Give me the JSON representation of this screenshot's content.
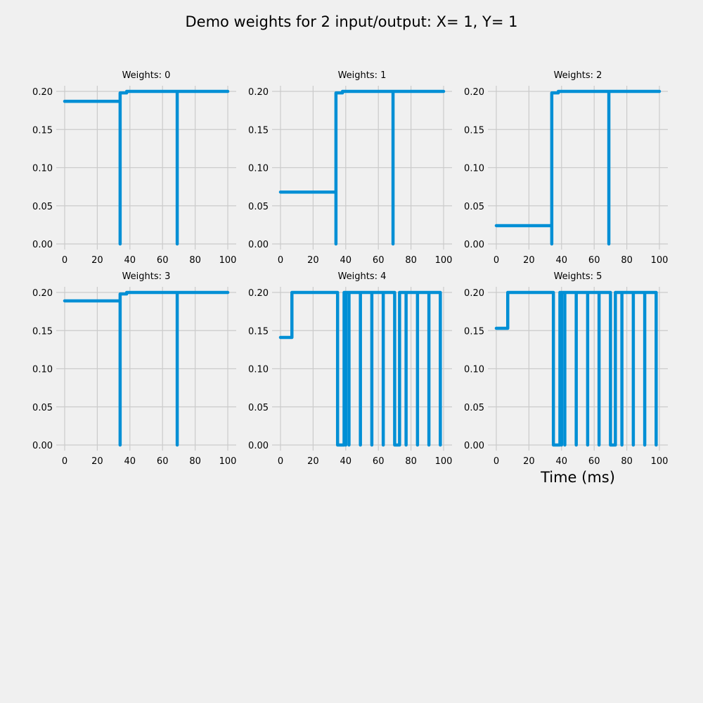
{
  "figure_title": "Demo weights for 2 input/output:  X= 1, Y= 1",
  "colors": {
    "background": "#f0f0f0",
    "series": "#008fd5",
    "grid": "#cbcbcb"
  },
  "chart_data": [
    {
      "type": "line",
      "title": "Weights: 0",
      "xlim": [
        0,
        100
      ],
      "ylim": [
        0,
        0.2
      ],
      "xticks": [
        "0",
        "20",
        "40",
        "60",
        "80",
        "100"
      ],
      "yticks": [
        "0.00",
        "0.05",
        "0.10",
        "0.15",
        "0.20"
      ],
      "grid": true,
      "series": [
        {
          "points": [
            [
              0,
              0.187
            ],
            [
              34,
              0.187
            ],
            [
              34,
              0
            ],
            [
              34,
              0.198
            ],
            [
              38,
              0.198
            ],
            [
              38,
              0.2
            ],
            [
              69,
              0.2
            ],
            [
              69,
              0
            ],
            [
              69,
              0.2
            ],
            [
              100,
              0.2
            ]
          ]
        }
      ]
    },
    {
      "type": "line",
      "title": "Weights: 1",
      "xlim": [
        0,
        100
      ],
      "ylim": [
        0,
        0.2
      ],
      "xticks": [
        "0",
        "20",
        "40",
        "60",
        "80",
        "100"
      ],
      "yticks": [
        "0.00",
        "0.05",
        "0.10",
        "0.15",
        "0.20"
      ],
      "grid": true,
      "series": [
        {
          "points": [
            [
              0,
              0.068
            ],
            [
              34,
              0.068
            ],
            [
              34,
              0
            ],
            [
              34,
              0.198
            ],
            [
              38,
              0.198
            ],
            [
              38,
              0.2
            ],
            [
              69,
              0.2
            ],
            [
              69,
              0
            ],
            [
              69,
              0.2
            ],
            [
              100,
              0.2
            ]
          ]
        }
      ]
    },
    {
      "type": "line",
      "title": "Weights: 2",
      "xlim": [
        0,
        100
      ],
      "ylim": [
        0,
        0.2
      ],
      "xticks": [
        "0",
        "20",
        "40",
        "60",
        "80",
        "100"
      ],
      "yticks": [
        "0.00",
        "0.05",
        "0.10",
        "0.15",
        "0.20"
      ],
      "grid": true,
      "series": [
        {
          "points": [
            [
              0,
              0.024
            ],
            [
              34,
              0.024
            ],
            [
              34,
              0
            ],
            [
              34,
              0.198
            ],
            [
              38,
              0.198
            ],
            [
              38,
              0.2
            ],
            [
              69,
              0.2
            ],
            [
              69,
              0
            ],
            [
              69,
              0.2
            ],
            [
              100,
              0.2
            ]
          ]
        }
      ]
    },
    {
      "type": "line",
      "title": "Weights: 3",
      "xlim": [
        0,
        100
      ],
      "ylim": [
        0,
        0.2
      ],
      "xticks": [
        "0",
        "20",
        "40",
        "60",
        "80",
        "100"
      ],
      "yticks": [
        "0.00",
        "0.05",
        "0.10",
        "0.15",
        "0.20"
      ],
      "grid": true,
      "series": [
        {
          "points": [
            [
              0,
              0.189
            ],
            [
              34,
              0.189
            ],
            [
              34,
              0
            ],
            [
              34,
              0.198
            ],
            [
              38,
              0.198
            ],
            [
              38,
              0.2
            ],
            [
              69,
              0.2
            ],
            [
              69,
              0
            ],
            [
              69,
              0.2
            ],
            [
              100,
              0.2
            ]
          ]
        }
      ]
    },
    {
      "type": "line",
      "title": "Weights: 4",
      "xlim": [
        0,
        100
      ],
      "ylim": [
        0,
        0.2
      ],
      "xticks": [
        "0",
        "20",
        "40",
        "60",
        "80",
        "100"
      ],
      "yticks": [
        "0.00",
        "0.05",
        "0.10",
        "0.15",
        "0.20"
      ],
      "grid": true,
      "series": [
        {
          "points": [
            [
              0,
              0.141
            ],
            [
              7,
              0.141
            ],
            [
              7,
              0.2
            ],
            [
              35,
              0.2
            ],
            [
              35,
              0
            ],
            [
              39,
              0
            ],
            [
              39,
              0.2
            ],
            [
              40,
              0.2
            ],
            [
              40,
              0
            ],
            [
              40,
              0.2
            ],
            [
              42,
              0.2
            ],
            [
              42,
              0
            ],
            [
              42,
              0.2
            ],
            [
              49,
              0.2
            ],
            [
              49,
              0
            ],
            [
              49,
              0.2
            ],
            [
              56,
              0.2
            ],
            [
              56,
              0
            ],
            [
              56,
              0.2
            ],
            [
              63,
              0.2
            ],
            [
              63,
              0
            ],
            [
              63,
              0.2
            ],
            [
              70,
              0.2
            ],
            [
              70,
              0
            ],
            [
              73,
              0
            ],
            [
              73,
              0.2
            ],
            [
              77,
              0.2
            ],
            [
              77,
              0
            ],
            [
              77,
              0.2
            ],
            [
              84,
              0.2
            ],
            [
              84,
              0
            ],
            [
              84,
              0.2
            ],
            [
              91,
              0.2
            ],
            [
              91,
              0
            ],
            [
              91,
              0.2
            ],
            [
              98,
              0.2
            ],
            [
              98,
              0
            ],
            [
              98,
              0.2
            ]
          ]
        }
      ]
    },
    {
      "type": "line",
      "title": "Weights: 5",
      "xlim": [
        0,
        100
      ],
      "ylim": [
        0,
        0.2
      ],
      "xticks": [
        "0",
        "20",
        "40",
        "60",
        "80",
        "100"
      ],
      "yticks": [
        "0.00",
        "0.05",
        "0.10",
        "0.15",
        "0.20"
      ],
      "xlabel": "Time (ms)",
      "grid": true,
      "series": [
        {
          "points": [
            [
              0,
              0.153
            ],
            [
              7,
              0.153
            ],
            [
              7,
              0.2
            ],
            [
              35,
              0.2
            ],
            [
              35,
              0
            ],
            [
              39,
              0
            ],
            [
              39,
              0.2
            ],
            [
              40,
              0.2
            ],
            [
              40,
              0
            ],
            [
              40,
              0.2
            ],
            [
              42,
              0.2
            ],
            [
              42,
              0
            ],
            [
              42,
              0.2
            ],
            [
              49,
              0.2
            ],
            [
              49,
              0
            ],
            [
              49,
              0.2
            ],
            [
              56,
              0.2
            ],
            [
              56,
              0
            ],
            [
              56,
              0.2
            ],
            [
              63,
              0.2
            ],
            [
              63,
              0
            ],
            [
              63,
              0.2
            ],
            [
              70,
              0.2
            ],
            [
              70,
              0
            ],
            [
              73,
              0
            ],
            [
              73,
              0.2
            ],
            [
              77,
              0.2
            ],
            [
              77,
              0
            ],
            [
              77,
              0.2
            ],
            [
              84,
              0.2
            ],
            [
              84,
              0
            ],
            [
              84,
              0.2
            ],
            [
              91,
              0.2
            ],
            [
              91,
              0
            ],
            [
              91,
              0.2
            ],
            [
              98,
              0.2
            ],
            [
              98,
              0
            ],
            [
              98,
              0.2
            ]
          ]
        }
      ]
    }
  ]
}
